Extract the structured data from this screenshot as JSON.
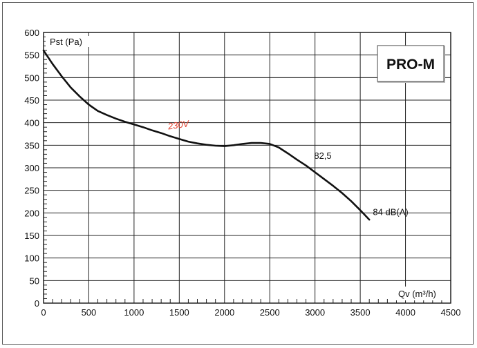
{
  "chart_data": {
    "type": "line",
    "title": "",
    "xlabel": "Qv (m³/h)",
    "ylabel": "Pst (Pa)",
    "xlim": [
      0,
      4500
    ],
    "ylim": [
      0,
      600
    ],
    "x_ticks": [
      "0",
      "500",
      "1000",
      "1500",
      "2000",
      "2500",
      "3000",
      "3500",
      "4000",
      "4500"
    ],
    "y_ticks": [
      "0",
      "50",
      "100",
      "150",
      "200",
      "250",
      "300",
      "350",
      "400",
      "450",
      "500",
      "550",
      "600"
    ],
    "grid": true,
    "series": [
      {
        "name": "230V",
        "color": "#111111",
        "x": [
          0,
          100,
          200,
          300,
          400,
          500,
          600,
          700,
          800,
          900,
          1000,
          1100,
          1200,
          1300,
          1400,
          1500,
          1600,
          1700,
          1800,
          1900,
          2000,
          2100,
          2200,
          2300,
          2400,
          2500,
          2600,
          2700,
          2800,
          2900,
          3000,
          3100,
          3200,
          3300,
          3400,
          3500,
          3600
        ],
        "y": [
          560,
          530,
          503,
          478,
          458,
          440,
          426,
          417,
          409,
          402,
          396,
          390,
          383,
          377,
          370,
          364,
          358,
          354,
          351,
          349,
          348,
          350,
          353,
          355,
          355,
          353,
          345,
          332,
          318,
          305,
          290,
          275,
          260,
          244,
          226,
          206,
          185
        ]
      }
    ],
    "annotations": [
      {
        "text": "230V",
        "x": 1380,
        "y": 385,
        "color": "#e03c2a"
      },
      {
        "text": "82,5",
        "x": 2990,
        "y": 320
      },
      {
        "text": "84 dB(A)",
        "x": 3640,
        "y": 195
      }
    ],
    "badge": "PRO-M"
  }
}
